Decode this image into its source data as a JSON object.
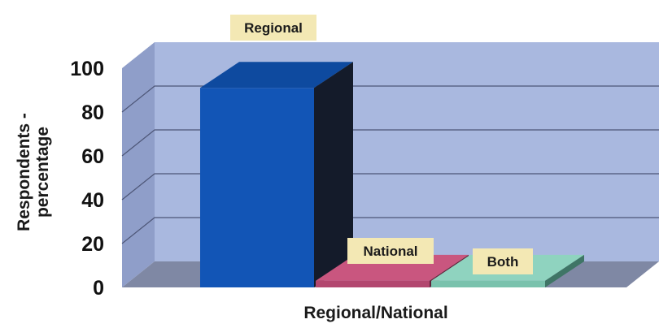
{
  "chart_data": {
    "type": "bar",
    "title": "",
    "xlabel": "Regional/National",
    "ylabel": "Respondents - percentage",
    "ylabel_lines": [
      "Respondents -",
      "percentage"
    ],
    "categories": [
      "Regional",
      "National",
      "Both"
    ],
    "values": [
      91,
      3,
      3
    ],
    "data_labels": [
      "Regional",
      "National",
      "Both"
    ],
    "y_ticks": [
      "0",
      "20",
      "40",
      "60",
      "80",
      "100"
    ],
    "ylim": [
      0,
      100
    ],
    "grid": true,
    "legend": "none",
    "colors": {
      "back_wall": "#a9b8df",
      "side_wall": "#8f9ec9",
      "floor": "#7f88a4",
      "gridline": "#4d5677",
      "bars": [
        "#1255b6",
        "#b2476f",
        "#7ac2ad"
      ],
      "bar_sides": [
        "#141b2a",
        "#5e2238",
        "#3f7566"
      ],
      "bar_tops": [
        "#0e4a9f",
        "#c9567f",
        "#8fd3bf"
      ],
      "label_box": "#f3e8b4"
    }
  }
}
